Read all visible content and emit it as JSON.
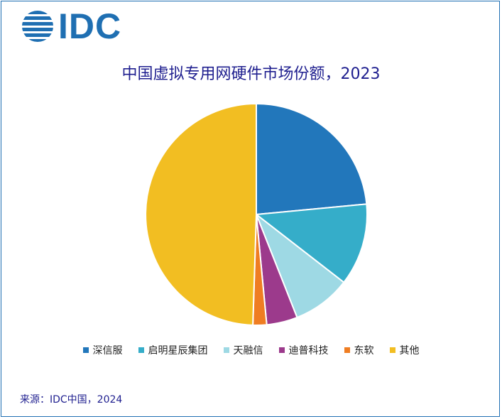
{
  "logo": {
    "text": "IDC"
  },
  "chart_data": {
    "type": "pie",
    "title": "中国虚拟专用网硬件市场份额，2023",
    "start_angle": "12 o'clock",
    "direction": "clockwise",
    "legend_position": "bottom",
    "slices": [
      {
        "label": "深信服",
        "value": 23.5,
        "color": "#2277bb"
      },
      {
        "label": "启明星辰集团",
        "value": 12.0,
        "color": "#35adc9"
      },
      {
        "label": "天融信",
        "value": 8.5,
        "color": "#9ed9e4"
      },
      {
        "label": "迪普科技",
        "value": 4.5,
        "color": "#9c3a8c"
      },
      {
        "label": "东软",
        "value": 2.0,
        "color": "#ef7d22"
      },
      {
        "label": "其他",
        "value": 49.5,
        "color": "#f2be22"
      }
    ]
  },
  "source": "来源：IDC中国，2024"
}
